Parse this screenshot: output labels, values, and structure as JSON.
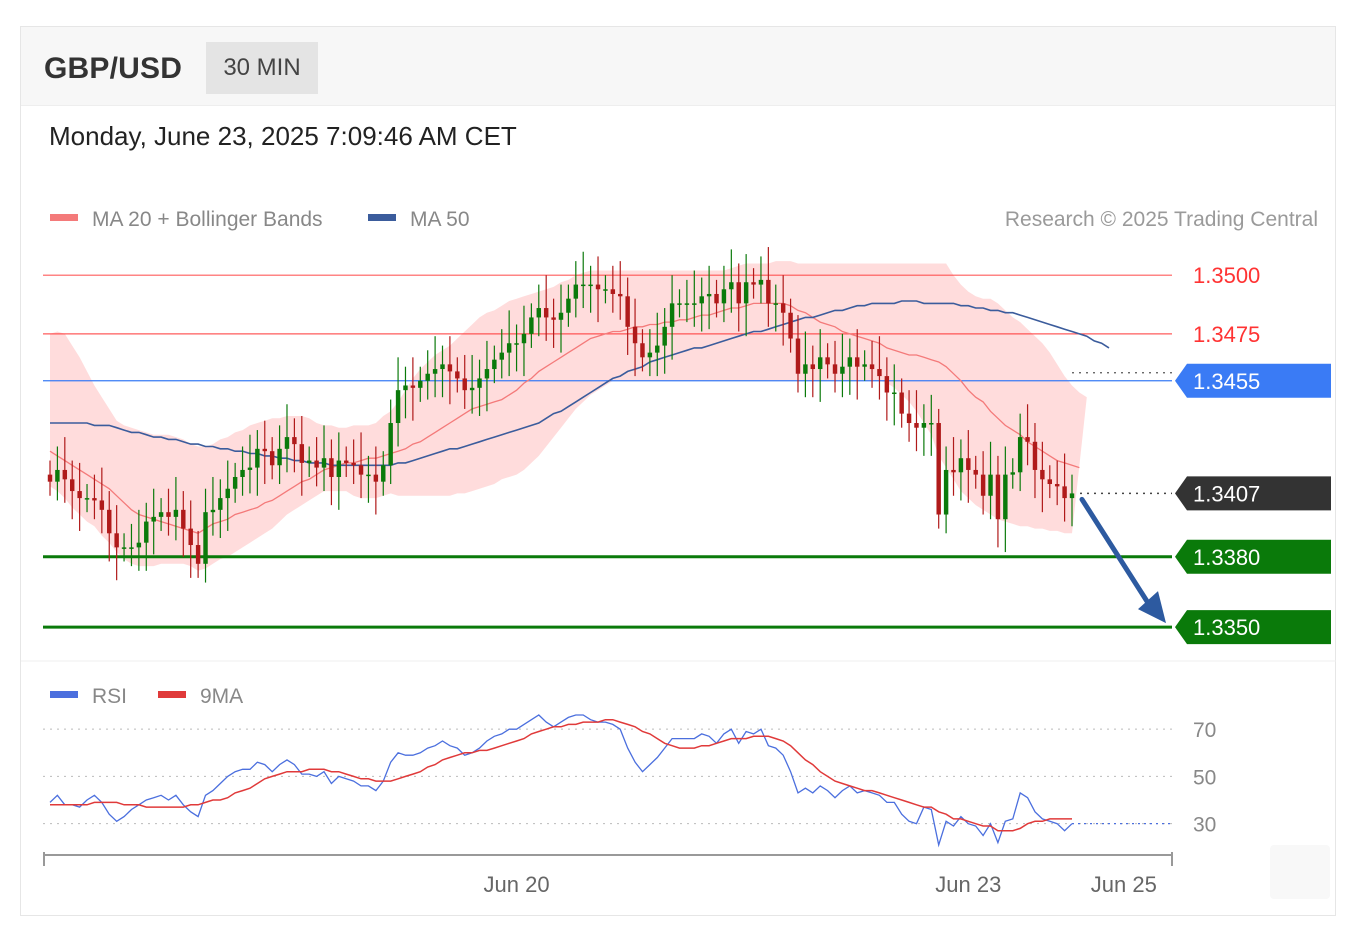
{
  "header": {
    "symbol": "GBP/USD",
    "timeframe": "30 MIN"
  },
  "timestamp": "Monday, June 23, 2025 7:09:46 AM CET",
  "legend": {
    "ma20_bb": "MA 20 + Bollinger Bands",
    "ma50": "MA 50",
    "research": "Research © 2025 Trading Central",
    "rsi": "RSI",
    "rsi_ma": "9MA"
  },
  "colors": {
    "resistance": "#ff3333",
    "pivot": "#3a7bf5",
    "support": "#0a7a0a",
    "current": "#333333",
    "ma20": "#f47a7a",
    "bands": "#ffd6d6",
    "ma50": "#3b5c9c",
    "bull": "#0b7a0b",
    "bear": "#b01a1a",
    "arrow": "#2d5aa0",
    "rsi": "#4b6fde",
    "rsi_ma": "#e03a3a"
  },
  "chart_data": [
    {
      "type": "candlestick",
      "title": "GBP/USD",
      "ylim": [
        1.3336,
        1.3515
      ],
      "levels": [
        {
          "label": "1.3500",
          "value": 1.35,
          "kind": "resistance"
        },
        {
          "label": "1.3475",
          "value": 1.3475,
          "kind": "resistance"
        },
        {
          "label": "1.3455",
          "value": 1.3455,
          "kind": "pivot"
        },
        {
          "label": "1.3407",
          "value": 1.3407,
          "kind": "current"
        },
        {
          "label": "1.3380",
          "value": 1.338,
          "kind": "support"
        },
        {
          "label": "1.3350",
          "value": 1.335,
          "kind": "support"
        }
      ],
      "x_ticks": [
        {
          "label": "Jun 20",
          "index": 63
        },
        {
          "label": "Jun 23",
          "index": 124
        },
        {
          "label": "Jun 25",
          "index": 145
        }
      ],
      "closes": [
        1.3412,
        1.3417,
        1.3413,
        1.3408,
        1.3405,
        1.3405,
        1.3404,
        1.34,
        1.339,
        1.3384,
        1.3384,
        1.3384,
        1.3386,
        1.3395,
        1.3397,
        1.3399,
        1.3397,
        1.34,
        1.3392,
        1.3385,
        1.3377,
        1.3399,
        1.34,
        1.3405,
        1.3409,
        1.3414,
        1.3417,
        1.3418,
        1.3426,
        1.3425,
        1.3419,
        1.3426,
        1.3431,
        1.3428,
        1.342,
        1.3421,
        1.3418,
        1.3422,
        1.3414,
        1.3421,
        1.342,
        1.3419,
        1.3415,
        1.3415,
        1.3412,
        1.3419,
        1.3437,
        1.3451,
        1.3453,
        1.3452,
        1.3455,
        1.3458,
        1.346,
        1.3462,
        1.3459,
        1.3456,
        1.3451,
        1.3452,
        1.3456,
        1.346,
        1.3464,
        1.3467,
        1.3471,
        1.3471,
        1.3475,
        1.3482,
        1.3486,
        1.3482,
        1.3481,
        1.3484,
        1.349,
        1.3496,
        1.3496,
        1.3496,
        1.3494,
        1.3494,
        1.3492,
        1.3491,
        1.3478,
        1.3471,
        1.3465,
        1.3467,
        1.347,
        1.3478,
        1.3488,
        1.3488,
        1.3488,
        1.3488,
        1.3491,
        1.3492,
        1.3488,
        1.3494,
        1.3497,
        1.3488,
        1.3497,
        1.3496,
        1.3498,
        1.3488,
        1.3488,
        1.3484,
        1.3473,
        1.3458,
        1.3462,
        1.346,
        1.3465,
        1.3462,
        1.3458,
        1.3461,
        1.3465,
        1.3461,
        1.3462,
        1.346,
        1.3457,
        1.345,
        1.345,
        1.3441,
        1.3437,
        1.3435,
        1.3437,
        1.3437,
        1.3398,
        1.3417,
        1.3416,
        1.3422,
        1.3417,
        1.3415,
        1.3406,
        1.3415,
        1.3396,
        1.3415,
        1.3416,
        1.3431,
        1.3429,
        1.3417,
        1.3413,
        1.3411,
        1.341,
        1.3405,
        1.3407
      ],
      "ma20": [
        1.3425,
        1.3423,
        1.3421,
        1.3419,
        1.3417,
        1.3415,
        1.3413,
        1.3411,
        1.3409,
        1.3406,
        1.3403,
        1.34,
        1.3398,
        1.3397,
        1.3396,
        1.3395,
        1.3394,
        1.3393,
        1.3392,
        1.3391,
        1.339,
        1.3392,
        1.3394,
        1.3395,
        1.3396,
        1.3398,
        1.3399,
        1.34,
        1.3401,
        1.3403,
        1.3404,
        1.3406,
        1.3408,
        1.341,
        1.3412,
        1.3413,
        1.3415,
        1.3417,
        1.3418,
        1.3419,
        1.342,
        1.342,
        1.3421,
        1.3422,
        1.3422,
        1.3423,
        1.3424,
        1.3425,
        1.3426,
        1.3428,
        1.3429,
        1.3431,
        1.3433,
        1.3435,
        1.3437,
        1.3439,
        1.3441,
        1.3443,
        1.3444,
        1.3445,
        1.3446,
        1.3447,
        1.3449,
        1.3451,
        1.3454,
        1.3456,
        1.3459,
        1.3461,
        1.3463,
        1.3465,
        1.3467,
        1.3469,
        1.3471,
        1.3473,
        1.3474,
        1.3475,
        1.3476,
        1.3476,
        1.3477,
        1.3478,
        1.3478,
        1.3479,
        1.3479,
        1.348,
        1.348,
        1.3481,
        1.3481,
        1.3482,
        1.3483,
        1.3483,
        1.3484,
        1.3485,
        1.3486,
        1.3486,
        1.3487,
        1.3488,
        1.3488,
        1.3488,
        1.3488,
        1.3488,
        1.3487,
        1.3485,
        1.3484,
        1.3482,
        1.348,
        1.3479,
        1.3478,
        1.3476,
        1.3475,
        1.3474,
        1.3473,
        1.3472,
        1.3471,
        1.3469,
        1.3468,
        1.3467,
        1.3466,
        1.3466,
        1.3465,
        1.3464,
        1.3463,
        1.3461,
        1.3458,
        1.3455,
        1.3451,
        1.3448,
        1.3446,
        1.3442,
        1.3439,
        1.3436,
        1.3434,
        1.3432,
        1.3429,
        1.3427,
        1.3425,
        1.3423,
        1.3421,
        1.342,
        1.3419,
        1.3418
      ],
      "bb_upper": [
        1.3475,
        1.3476,
        1.3475,
        1.347,
        1.3465,
        1.3459,
        1.3453,
        1.3448,
        1.3443,
        1.3438,
        1.3436,
        1.3435,
        1.3434,
        1.3433,
        1.3432,
        1.3432,
        1.3432,
        1.3431,
        1.343,
        1.3428,
        1.3427,
        1.3427,
        1.3428,
        1.343,
        1.3431,
        1.3433,
        1.3434,
        1.3436,
        1.3437,
        1.3438,
        1.3439,
        1.3439,
        1.344,
        1.344,
        1.344,
        1.3439,
        1.3437,
        1.3436,
        1.3436,
        1.3435,
        1.3435,
        1.3436,
        1.3436,
        1.3436,
        1.3437,
        1.344,
        1.3442,
        1.3446,
        1.3451,
        1.3456,
        1.346,
        1.3463,
        1.3466,
        1.3468,
        1.347,
        1.3473,
        1.3476,
        1.3479,
        1.3482,
        1.3484,
        1.3485,
        1.3487,
        1.3489,
        1.349,
        1.3491,
        1.3492,
        1.3493,
        1.3494,
        1.3495,
        1.3497,
        1.3498,
        1.35,
        1.3501,
        1.3502,
        1.3502,
        1.3502,
        1.3502,
        1.3502,
        1.3502,
        1.3502,
        1.3502,
        1.3502,
        1.3502,
        1.3502,
        1.3502,
        1.3502,
        1.3502,
        1.3502,
        1.3502,
        1.3502,
        1.3502,
        1.3502,
        1.3503,
        1.3504,
        1.3505,
        1.3505,
        1.3505,
        1.3505,
        1.3506,
        1.3506,
        1.3506,
        1.3505,
        1.3505,
        1.3505,
        1.3505,
        1.3505,
        1.3505,
        1.3505,
        1.3505,
        1.3505,
        1.3505,
        1.3505,
        1.3505,
        1.3505,
        1.3505,
        1.3505,
        1.3505,
        1.3505,
        1.3505,
        1.3505,
        1.3505,
        1.3505,
        1.35,
        1.3496,
        1.3493,
        1.3491,
        1.349,
        1.349,
        1.3488,
        1.3485,
        1.3482,
        1.348,
        1.3477,
        1.3474,
        1.3471,
        1.3467,
        1.3462,
        1.3457,
        1.3453,
        1.345,
        1.3448
      ],
      "bb_lower": [
        1.341,
        1.3408,
        1.3405,
        1.3401,
        1.3398,
        1.3395,
        1.3393,
        1.3389,
        1.3386,
        1.3382,
        1.3379,
        1.3377,
        1.3376,
        1.3376,
        1.3376,
        1.3377,
        1.3377,
        1.3377,
        1.3377,
        1.3376,
        1.3374,
        1.3375,
        1.3377,
        1.3379,
        1.338,
        1.3382,
        1.3384,
        1.3386,
        1.3388,
        1.339,
        1.3392,
        1.3395,
        1.3398,
        1.34,
        1.3402,
        1.3404,
        1.3406,
        1.3408,
        1.3408,
        1.3408,
        1.3408,
        1.3406,
        1.3405,
        1.3405,
        1.3405,
        1.3406,
        1.3407,
        1.3406,
        1.3406,
        1.3406,
        1.3406,
        1.3406,
        1.3406,
        1.3406,
        1.3406,
        1.3407,
        1.3407,
        1.3408,
        1.3409,
        1.341,
        1.3411,
        1.3413,
        1.3414,
        1.3415,
        1.3417,
        1.342,
        1.3423,
        1.3427,
        1.3431,
        1.3435,
        1.3439,
        1.3443,
        1.3446,
        1.3449,
        1.3451,
        1.3453,
        1.3455,
        1.3455,
        1.3455,
        1.3455,
        1.3455,
        1.3455,
        1.3455,
        1.3455,
        1.3455,
        1.3455,
        1.3455,
        1.3455,
        1.3455,
        1.3455,
        1.3455,
        1.3455,
        1.3455,
        1.3455,
        1.3455,
        1.3455,
        1.3455,
        1.3455,
        1.3455,
        1.3455,
        1.3455,
        1.3455,
        1.3455,
        1.3455,
        1.3455,
        1.3455,
        1.3455,
        1.3455,
        1.3455,
        1.3455,
        1.3455,
        1.3455,
        1.3455,
        1.3454,
        1.3452,
        1.3449,
        1.3446,
        1.3442,
        1.3437,
        1.3432,
        1.3423,
        1.3418,
        1.3413,
        1.3408,
        1.3405,
        1.3402,
        1.34,
        1.3398,
        1.3396,
        1.3395,
        1.3394,
        1.3393,
        1.3393,
        1.3392,
        1.3392,
        1.3391,
        1.3391,
        1.339,
        1.339
      ],
      "ma50": [
        1.3437,
        1.3437,
        1.3437,
        1.3437,
        1.3437,
        1.3437,
        1.3436,
        1.3436,
        1.3436,
        1.3435,
        1.3434,
        1.3433,
        1.3433,
        1.3432,
        1.3431,
        1.3431,
        1.343,
        1.343,
        1.3429,
        1.3428,
        1.3428,
        1.3427,
        1.3427,
        1.3426,
        1.3426,
        1.3425,
        1.3425,
        1.3424,
        1.3424,
        1.3423,
        1.3423,
        1.3422,
        1.3422,
        1.3421,
        1.3421,
        1.342,
        1.342,
        1.342,
        1.3419,
        1.3419,
        1.3419,
        1.3419,
        1.3419,
        1.3419,
        1.3419,
        1.3419,
        1.3419,
        1.342,
        1.342,
        1.3421,
        1.3422,
        1.3423,
        1.3424,
        1.3425,
        1.3426,
        1.3426,
        1.3427,
        1.3428,
        1.3429,
        1.343,
        1.3431,
        1.3432,
        1.3433,
        1.3434,
        1.3435,
        1.3436,
        1.3437,
        1.3439,
        1.3441,
        1.3442,
        1.3444,
        1.3446,
        1.3448,
        1.345,
        1.3452,
        1.3454,
        1.3456,
        1.3457,
        1.3459,
        1.346,
        1.3461,
        1.3463,
        1.3464,
        1.3465,
        1.3466,
        1.3467,
        1.3468,
        1.3469,
        1.3469,
        1.347,
        1.3471,
        1.3472,
        1.3473,
        1.3474,
        1.3475,
        1.3476,
        1.3476,
        1.3477,
        1.3478,
        1.3479,
        1.348,
        1.3481,
        1.3482,
        1.3482,
        1.3483,
        1.3484,
        1.3485,
        1.3485,
        1.3486,
        1.3487,
        1.3487,
        1.3488,
        1.3488,
        1.3488,
        1.3488,
        1.3489,
        1.3489,
        1.3489,
        1.3488,
        1.3488,
        1.3488,
        1.3488,
        1.3488,
        1.3487,
        1.3487,
        1.3486,
        1.3486,
        1.3485,
        1.3485,
        1.3484,
        1.3484,
        1.3483,
        1.3482,
        1.3481,
        1.348,
        1.3479,
        1.3478,
        1.3477,
        1.3476,
        1.3475,
        1.3474,
        1.3472,
        1.3471,
        1.3469
      ]
    },
    {
      "type": "line",
      "ylim": [
        18,
        76
      ],
      "y_ticks": [
        {
          "label": "70",
          "value": 70
        },
        {
          "label": "50",
          "value": 50
        },
        {
          "label": "30",
          "value": 30
        }
      ],
      "series": [
        {
          "name": "RSI",
          "values": [
            39,
            42,
            38,
            38,
            37,
            40,
            42,
            39,
            34,
            31,
            33,
            36,
            38,
            40,
            41,
            42,
            40,
            42,
            38,
            35,
            33,
            42,
            44,
            47,
            50,
            52,
            53,
            53,
            56,
            55,
            52,
            55,
            57,
            55,
            51,
            51,
            50,
            52,
            47,
            50,
            49,
            48,
            46,
            46,
            44,
            48,
            56,
            60,
            59,
            59,
            60,
            62,
            63,
            65,
            63,
            62,
            59,
            60,
            62,
            65,
            67,
            68,
            70,
            70,
            72,
            74,
            76,
            73,
            71,
            73,
            75,
            76,
            76,
            74,
            73,
            73,
            72,
            70,
            62,
            56,
            52,
            55,
            58,
            62,
            66,
            66,
            66,
            66,
            68,
            67,
            64,
            68,
            70,
            64,
            69,
            68,
            70,
            63,
            62,
            59,
            52,
            43,
            45,
            43,
            46,
            44,
            41,
            44,
            46,
            43,
            44,
            43,
            42,
            39,
            39,
            34,
            31,
            30,
            37,
            36,
            21,
            31,
            29,
            33,
            30,
            29,
            25,
            30,
            22,
            31,
            32,
            43,
            41,
            35,
            32,
            31,
            30,
            27,
            30
          ]
        },
        {
          "name": "9MA",
          "values": [
            38,
            38,
            38,
            38,
            38,
            38,
            39,
            39,
            39,
            39,
            38,
            38,
            38,
            37,
            37,
            37,
            37,
            37,
            37,
            38,
            38,
            39,
            40,
            40,
            41,
            43,
            44,
            45,
            47,
            49,
            50,
            51,
            52,
            52,
            52,
            53,
            53,
            53,
            52,
            52,
            51,
            50,
            49,
            49,
            48,
            48,
            48,
            49,
            50,
            51,
            52,
            54,
            55,
            57,
            58,
            59,
            60,
            60,
            61,
            61,
            62,
            63,
            64,
            65,
            66,
            68,
            69,
            70,
            71,
            71,
            72,
            72,
            73,
            73,
            73,
            74,
            74,
            73,
            72,
            71,
            69,
            68,
            66,
            64,
            63,
            62,
            62,
            62,
            63,
            63,
            64,
            65,
            66,
            66,
            66,
            67,
            67,
            67,
            66,
            65,
            63,
            60,
            57,
            55,
            52,
            50,
            48,
            47,
            46,
            45,
            44,
            44,
            43,
            42,
            41,
            40,
            39,
            38,
            37,
            37,
            35,
            34,
            32,
            32,
            31,
            30,
            29,
            29,
            27,
            27,
            27,
            28,
            30,
            31,
            31,
            32,
            32,
            32,
            32
          ]
        }
      ]
    }
  ]
}
